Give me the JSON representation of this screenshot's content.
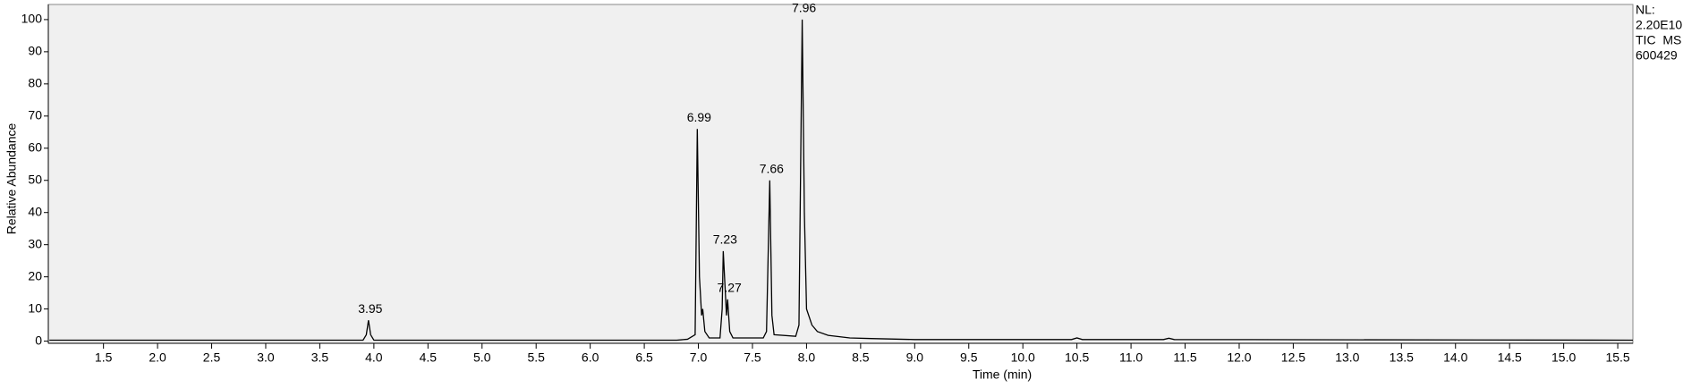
{
  "chart_data": {
    "type": "line",
    "x_label": "Time (min)",
    "y_label": "Relative Abundance",
    "annotations": [
      "NL:",
      "2.20E10",
      "TIC  MS",
      "600429"
    ],
    "color": "#000000",
    "x": [
      1.0,
      3.9,
      3.93,
      3.95,
      3.97,
      4.0,
      6.8,
      6.9,
      6.97,
      6.99,
      7.01,
      7.03,
      7.04,
      7.06,
      7.1,
      7.2,
      7.22,
      7.23,
      7.245,
      7.26,
      7.27,
      7.29,
      7.32,
      7.6,
      7.63,
      7.66,
      7.68,
      7.7,
      7.9,
      7.93,
      7.96,
      7.98,
      8.0,
      8.05,
      8.1,
      8.2,
      8.4,
      8.6,
      9.0,
      10.45,
      10.5,
      10.55,
      11.3,
      11.35,
      11.4,
      15.64
    ],
    "values": [
      0.3,
      0.3,
      2,
      6.5,
      2,
      0.3,
      0.3,
      0.6,
      2,
      66,
      20,
      8,
      10,
      3,
      1,
      1,
      10,
      28,
      18,
      8,
      13,
      3,
      1,
      1,
      3,
      50,
      8,
      2,
      1.5,
      5,
      100,
      40,
      10,
      5,
      3,
      1.8,
      1,
      0.8,
      0.5,
      0.5,
      1,
      0.5,
      0.5,
      0.9,
      0.5,
      0.3
    ],
    "peaks": [
      {
        "x": 3.95,
        "y": 6.5
      },
      {
        "x": 6.99,
        "y": 66
      },
      {
        "x": 7.23,
        "y": 28
      },
      {
        "x": 7.27,
        "y": 13
      },
      {
        "x": 7.66,
        "y": 50
      },
      {
        "x": 7.96,
        "y": 100
      }
    ],
    "xlim": [
      0.99,
      15.64
    ],
    "ylim": [
      -0.67,
      104.7
    ],
    "xticks": [
      1.5,
      {
        "value": 2,
        "label": "2.0"
      },
      2.5,
      {
        "value": 3,
        "label": "3.0"
      },
      3.5,
      {
        "value": 4,
        "label": "4.0"
      },
      4.5,
      {
        "value": 5,
        "label": "5.0"
      },
      5.5,
      {
        "value": 6,
        "label": "6.0"
      },
      6.5,
      {
        "value": 7,
        "label": "7.0"
      },
      7.5,
      {
        "value": 8,
        "label": "8.0"
      },
      8.5,
      {
        "value": 9,
        "label": "9.0"
      },
      9.5,
      {
        "value": 10,
        "label": "10.0"
      },
      10.5,
      {
        "value": 11,
        "label": "11.0"
      },
      11.5,
      {
        "value": 12,
        "label": "12.0"
      },
      12.5,
      {
        "value": 13,
        "label": "13.0"
      },
      13.5,
      {
        "value": 14,
        "label": "14.0"
      },
      14.5,
      {
        "value": 15,
        "label": "15.0"
      },
      15.5
    ],
    "yticks": [
      0,
      10,
      20,
      30,
      40,
      50,
      60,
      70,
      80,
      90,
      100
    ]
  }
}
